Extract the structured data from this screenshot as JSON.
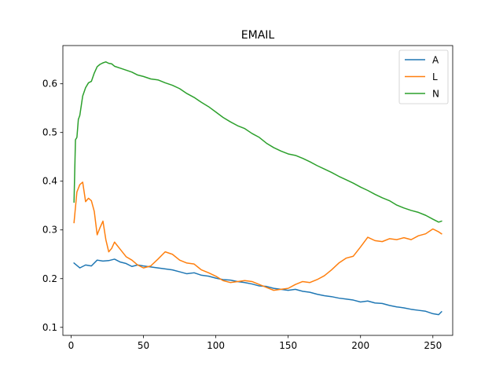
{
  "chart_data": {
    "type": "line",
    "title": "EMAIL",
    "xlabel": "",
    "ylabel": "",
    "xlim": [
      -5.7,
      263.7
    ],
    "ylim": [
      0.0835,
      0.6785
    ],
    "xticks": [
      0,
      50,
      100,
      150,
      200,
      250
    ],
    "yticks": [
      0.1,
      0.2,
      0.3,
      0.4,
      0.5,
      0.6
    ],
    "grid": false,
    "legend_position": "upper right",
    "series": [
      {
        "name": "A",
        "color": "#1f77b4",
        "x": [
          2,
          6,
          10,
          14,
          18,
          22,
          26,
          30,
          34,
          38,
          42,
          46,
          50,
          55,
          60,
          65,
          70,
          75,
          80,
          85,
          90,
          95,
          100,
          105,
          110,
          115,
          120,
          125,
          130,
          135,
          140,
          145,
          150,
          155,
          160,
          165,
          170,
          175,
          180,
          185,
          190,
          195,
          200,
          205,
          210,
          215,
          220,
          225,
          230,
          235,
          240,
          245,
          250,
          254,
          256
        ],
        "values": [
          0.232,
          0.222,
          0.228,
          0.226,
          0.238,
          0.236,
          0.237,
          0.24,
          0.234,
          0.231,
          0.225,
          0.228,
          0.226,
          0.224,
          0.222,
          0.22,
          0.218,
          0.214,
          0.21,
          0.212,
          0.207,
          0.205,
          0.201,
          0.198,
          0.197,
          0.194,
          0.192,
          0.189,
          0.185,
          0.184,
          0.18,
          0.178,
          0.176,
          0.178,
          0.174,
          0.172,
          0.168,
          0.165,
          0.163,
          0.16,
          0.158,
          0.156,
          0.152,
          0.154,
          0.15,
          0.149,
          0.145,
          0.142,
          0.14,
          0.137,
          0.135,
          0.133,
          0.128,
          0.126,
          0.132
        ]
      },
      {
        "name": "L",
        "color": "#ff7f0e",
        "x": [
          2,
          4,
          6,
          8,
          10,
          12,
          14,
          16,
          18,
          20,
          22,
          24,
          26,
          28,
          30,
          34,
          38,
          42,
          46,
          50,
          55,
          60,
          65,
          70,
          75,
          80,
          85,
          90,
          95,
          100,
          105,
          110,
          115,
          120,
          125,
          130,
          135,
          140,
          145,
          150,
          155,
          160,
          165,
          170,
          175,
          180,
          185,
          190,
          195,
          200,
          205,
          210,
          215,
          220,
          225,
          230,
          235,
          240,
          245,
          250,
          254,
          256
        ],
        "values": [
          0.315,
          0.378,
          0.393,
          0.398,
          0.358,
          0.365,
          0.36,
          0.338,
          0.29,
          0.305,
          0.318,
          0.28,
          0.255,
          0.262,
          0.275,
          0.26,
          0.245,
          0.238,
          0.228,
          0.222,
          0.226,
          0.24,
          0.255,
          0.25,
          0.238,
          0.232,
          0.23,
          0.218,
          0.212,
          0.205,
          0.196,
          0.192,
          0.194,
          0.196,
          0.194,
          0.188,
          0.182,
          0.176,
          0.178,
          0.18,
          0.188,
          0.194,
          0.192,
          0.198,
          0.206,
          0.218,
          0.232,
          0.242,
          0.246,
          0.265,
          0.285,
          0.278,
          0.276,
          0.282,
          0.28,
          0.284,
          0.28,
          0.288,
          0.292,
          0.302,
          0.296,
          0.292
        ]
      },
      {
        "name": "N",
        "color": "#2ca02c",
        "x": [
          2,
          3,
          4,
          5,
          6,
          7,
          8,
          10,
          12,
          14,
          16,
          18,
          20,
          22,
          24,
          26,
          28,
          30,
          34,
          38,
          42,
          46,
          50,
          55,
          60,
          65,
          70,
          75,
          80,
          85,
          90,
          95,
          100,
          105,
          110,
          115,
          120,
          125,
          130,
          135,
          140,
          145,
          150,
          155,
          160,
          165,
          170,
          175,
          180,
          185,
          190,
          195,
          200,
          205,
          210,
          215,
          220,
          225,
          230,
          235,
          240,
          245,
          250,
          254,
          256
        ],
        "values": [
          0.357,
          0.485,
          0.49,
          0.527,
          0.535,
          0.555,
          0.575,
          0.592,
          0.602,
          0.605,
          0.622,
          0.635,
          0.64,
          0.643,
          0.645,
          0.642,
          0.641,
          0.636,
          0.632,
          0.628,
          0.624,
          0.618,
          0.615,
          0.61,
          0.608,
          0.602,
          0.597,
          0.59,
          0.58,
          0.572,
          0.562,
          0.553,
          0.542,
          0.531,
          0.522,
          0.514,
          0.508,
          0.498,
          0.49,
          0.478,
          0.469,
          0.462,
          0.456,
          0.453,
          0.447,
          0.44,
          0.432,
          0.425,
          0.418,
          0.41,
          0.403,
          0.396,
          0.388,
          0.381,
          0.373,
          0.366,
          0.36,
          0.351,
          0.345,
          0.34,
          0.336,
          0.33,
          0.322,
          0.316,
          0.318
        ]
      }
    ]
  }
}
